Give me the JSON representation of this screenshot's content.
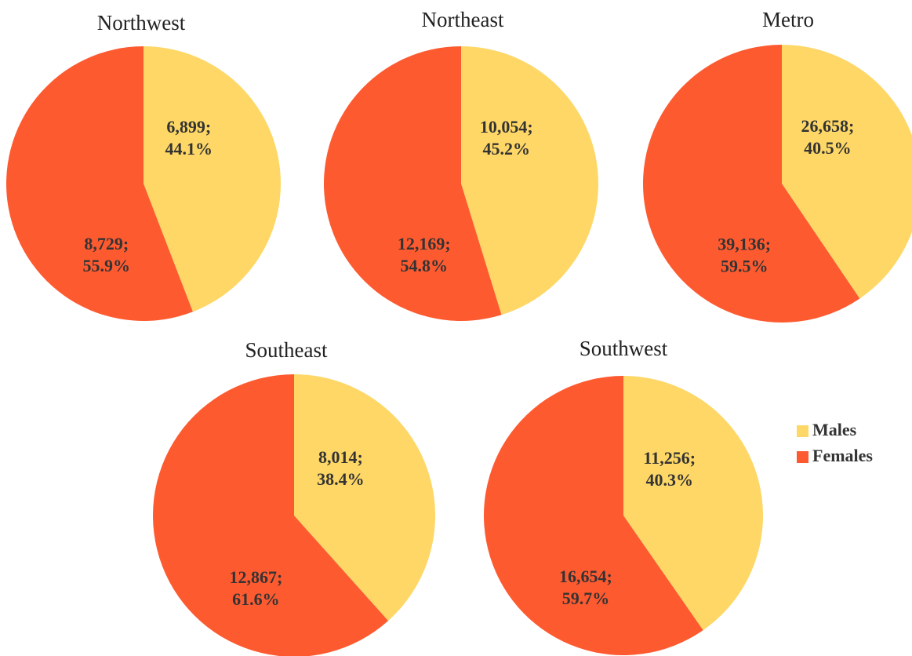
{
  "chart_data": [
    {
      "type": "pie",
      "title": "Northwest",
      "categories": [
        "Males",
        "Females"
      ],
      "colors": [
        "#fed766",
        "#fe5a30"
      ],
      "values": [
        6899,
        8729
      ],
      "value_labels": [
        "6,899;",
        "8,729;"
      ],
      "percents": [
        44.1,
        55.9
      ],
      "percent_labels": [
        "44.1%",
        "55.9%"
      ]
    },
    {
      "type": "pie",
      "title": "Northeast",
      "categories": [
        "Males",
        "Females"
      ],
      "colors": [
        "#fed766",
        "#fe5a30"
      ],
      "values": [
        10054,
        12169
      ],
      "value_labels": [
        "10,054;",
        "12,169;"
      ],
      "percents": [
        45.2,
        54.8
      ],
      "percent_labels": [
        "45.2%",
        "54.8%"
      ]
    },
    {
      "type": "pie",
      "title": "Metro",
      "categories": [
        "Males",
        "Females"
      ],
      "colors": [
        "#fed766",
        "#fe5a30"
      ],
      "values": [
        26658,
        39136
      ],
      "value_labels": [
        "26,658;",
        "39,136;"
      ],
      "percents": [
        40.5,
        59.5
      ],
      "percent_labels": [
        "40.5%",
        "59.5%"
      ]
    },
    {
      "type": "pie",
      "title": "Southeast",
      "categories": [
        "Males",
        "Females"
      ],
      "colors": [
        "#fed766",
        "#fe5a30"
      ],
      "values": [
        8014,
        12867
      ],
      "value_labels": [
        "8,014;",
        "12,867;"
      ],
      "percents": [
        38.4,
        61.6
      ],
      "percent_labels": [
        "38.4%",
        "61.6%"
      ]
    },
    {
      "type": "pie",
      "title": "Southwest",
      "categories": [
        "Males",
        "Females"
      ],
      "colors": [
        "#fed766",
        "#fe5a30"
      ],
      "values": [
        11256,
        16654
      ],
      "value_labels": [
        "11,256;",
        "16,654;"
      ],
      "percents": [
        40.3,
        59.7
      ],
      "percent_labels": [
        "40.3%",
        "59.7%"
      ]
    }
  ],
  "legend": {
    "entries": [
      "Males",
      "Females"
    ],
    "colors": [
      "#fed766",
      "#fe5a30"
    ]
  }
}
